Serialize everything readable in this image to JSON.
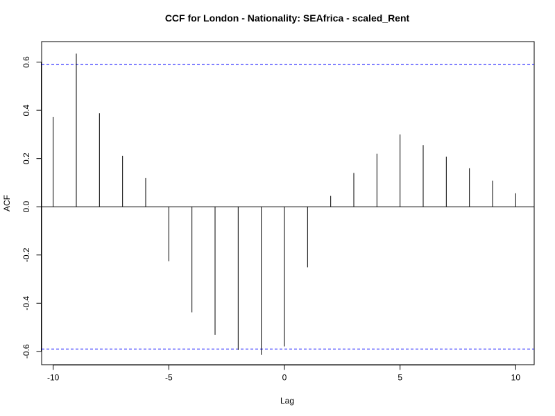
{
  "chart_data": {
    "type": "bar",
    "title": "CCF for London - Nationality: SEAfrica - scaled_Rent",
    "xlabel": "Lag",
    "ylabel": "ACF",
    "xlim": [
      -10.5,
      10.8
    ],
    "ylim": [
      -0.655,
      0.685
    ],
    "x_ticks": [
      -10,
      -5,
      0,
      5,
      10
    ],
    "x_tick_labels": [
      "-10",
      "-5",
      "0",
      "5",
      "10"
    ],
    "y_ticks": [
      -0.6,
      -0.4,
      -0.2,
      0.0,
      0.2,
      0.4,
      0.6
    ],
    "y_tick_labels": [
      "-0.6",
      "-0.4",
      "-0.2",
      "0.0",
      "0.2",
      "0.4",
      "0.6"
    ],
    "lags": [
      -10,
      -9,
      -8,
      -7,
      -6,
      -5,
      -4,
      -3,
      -2,
      -1,
      0,
      1,
      2,
      3,
      4,
      5,
      6,
      7,
      8,
      9,
      10
    ],
    "values": [
      0.372,
      0.635,
      0.388,
      0.211,
      0.119,
      -0.226,
      -0.438,
      -0.531,
      -0.594,
      -0.614,
      -0.579,
      -0.251,
      0.045,
      0.14,
      0.22,
      0.3,
      0.256,
      0.208,
      0.16,
      0.108,
      0.056
    ],
    "confidence_bound": 0.59,
    "colors": {
      "bars": "#000000",
      "confidence": "#0000ff",
      "zero_line": "#000000"
    },
    "grid": false,
    "legend": "none"
  }
}
